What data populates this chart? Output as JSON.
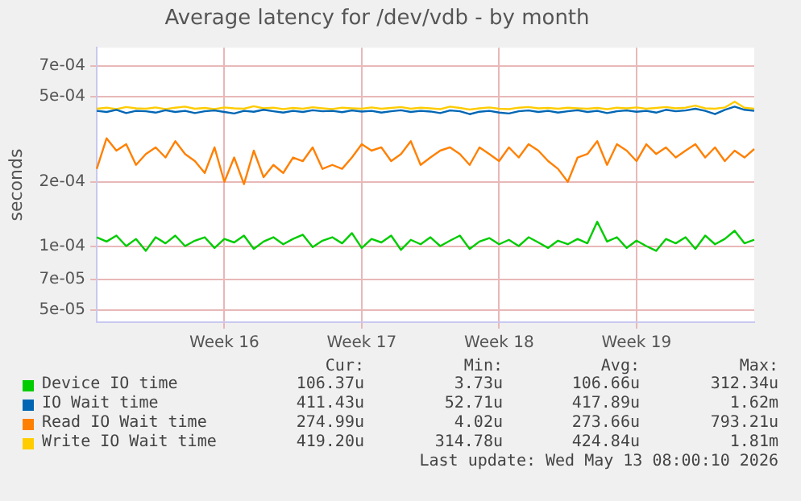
{
  "chart_data": {
    "type": "line",
    "title": "Average latency for /dev/vdb - by month",
    "ylabel": "seconds",
    "categories": [
      null,
      null,
      null,
      null,
      null,
      null,
      null,
      null,
      null,
      null,
      null,
      null,
      null,
      "Week 16",
      null,
      null,
      null,
      null,
      null,
      null,
      null,
      null,
      null,
      null,
      null,
      null,
      null,
      "Week 17",
      null,
      null,
      null,
      null,
      null,
      null,
      null,
      null,
      null,
      null,
      null,
      null,
      null,
      "Week 18",
      null,
      null,
      null,
      null,
      null,
      null,
      null,
      null,
      null,
      null,
      null,
      null,
      null,
      "Week 19",
      null,
      null,
      null,
      null,
      null,
      null,
      null,
      null,
      null,
      null,
      null,
      null
    ],
    "series": [
      {
        "name": "Device IO time",
        "color": "#00cc00",
        "values": [
          0.00011,
          0.000105,
          0.000112,
          0.0001,
          0.000108,
          9.5e-05,
          0.00011,
          0.000103,
          0.000112,
          0.0001,
          0.000106,
          0.00011,
          9.8e-05,
          0.000108,
          0.000104,
          0.000112,
          9.7e-05,
          0.000105,
          0.00011,
          0.000102,
          0.000108,
          0.000113,
          9.9e-05,
          0.000106,
          0.00011,
          0.000103,
          0.000115,
          9.8e-05,
          0.000108,
          0.000104,
          0.000112,
          9.6e-05,
          0.000107,
          0.000102,
          0.00011,
          0.0001,
          0.000106,
          0.000112,
          9.7e-05,
          0.000105,
          0.000109,
          0.000102,
          0.000107,
          0.0001,
          0.00011,
          0.000104,
          9.8e-05,
          0.000106,
          0.000102,
          0.000108,
          0.000103,
          0.00013,
          0.000105,
          0.00011,
          9.8e-05,
          0.000106,
          0.0001,
          9.5e-05,
          0.000108,
          0.000103,
          0.00011,
          9.7e-05,
          0.000112,
          0.000102,
          0.000108,
          0.000118,
          0.000103,
          0.000107
        ]
      },
      {
        "name": "IO Wait time",
        "color": "#0066b3",
        "values": [
          0.00043,
          0.000425,
          0.000435,
          0.00042,
          0.00043,
          0.000428,
          0.000422,
          0.000433,
          0.000425,
          0.00043,
          0.00042,
          0.000428,
          0.000432,
          0.000425,
          0.000418,
          0.00043,
          0.000426,
          0.000435,
          0.000428,
          0.000422,
          0.00043,
          0.000425,
          0.000433,
          0.000428,
          0.00043,
          0.000424,
          0.000432,
          0.000427,
          0.00043,
          0.000422,
          0.000428,
          0.000433,
          0.000425,
          0.00043,
          0.000427,
          0.00042,
          0.000432,
          0.000428,
          0.000415,
          0.000426,
          0.00043,
          0.000422,
          0.000418,
          0.000428,
          0.000432,
          0.000425,
          0.00043,
          0.000422,
          0.000428,
          0.000433,
          0.000425,
          0.00043,
          0.00042,
          0.000428,
          0.000432,
          0.000426,
          0.00043,
          0.000422,
          0.000435,
          0.000428,
          0.000432,
          0.00044,
          0.00043,
          0.000415,
          0.000435,
          0.00045,
          0.000435,
          0.00043
        ]
      },
      {
        "name": "Read IO Wait time",
        "color": "#ff8000",
        "values": [
          0.00023,
          0.00032,
          0.00028,
          0.0003,
          0.00024,
          0.00027,
          0.00029,
          0.00026,
          0.00031,
          0.00027,
          0.00025,
          0.00022,
          0.00029,
          0.0002,
          0.00026,
          0.000195,
          0.00028,
          0.00021,
          0.00024,
          0.00022,
          0.00026,
          0.00025,
          0.00029,
          0.00023,
          0.00024,
          0.00023,
          0.00026,
          0.0003,
          0.00028,
          0.00029,
          0.00025,
          0.00027,
          0.00031,
          0.00024,
          0.00026,
          0.00028,
          0.00029,
          0.00027,
          0.00024,
          0.00029,
          0.00027,
          0.00025,
          0.00029,
          0.00026,
          0.0003,
          0.00028,
          0.00025,
          0.00023,
          0.0002,
          0.00026,
          0.00027,
          0.00031,
          0.00024,
          0.0003,
          0.00028,
          0.00025,
          0.0003,
          0.00027,
          0.00029,
          0.00026,
          0.00028,
          0.0003,
          0.00026,
          0.00029,
          0.00025,
          0.00028,
          0.00026,
          0.000285
        ]
      },
      {
        "name": "Write IO Wait time",
        "color": "#ffcc00",
        "values": [
          0.00044,
          0.000445,
          0.000438,
          0.000448,
          0.000442,
          0.00044,
          0.000446,
          0.000438,
          0.000445,
          0.00045,
          0.00044,
          0.000444,
          0.000438,
          0.000446,
          0.000442,
          0.00044,
          0.000452,
          0.000442,
          0.000445,
          0.000438,
          0.000444,
          0.00044,
          0.000447,
          0.000442,
          0.000438,
          0.000445,
          0.000442,
          0.00044,
          0.000446,
          0.00044,
          0.000444,
          0.000448,
          0.00044,
          0.000445,
          0.000442,
          0.000438,
          0.00045,
          0.000444,
          0.000436,
          0.000442,
          0.000446,
          0.00044,
          0.000438,
          0.000445,
          0.000448,
          0.000442,
          0.000444,
          0.00044,
          0.000445,
          0.000442,
          0.00044,
          0.000444,
          0.000438,
          0.000445,
          0.000442,
          0.000446,
          0.00044,
          0.000444,
          0.000448,
          0.000442,
          0.000445,
          0.000455,
          0.000442,
          0.00044,
          0.000446,
          0.000475,
          0.000445,
          0.00044
        ]
      }
    ],
    "ylim": [
      4.4e-05,
      0.00085
    ],
    "yticks": [
      {
        "value": 5e-05,
        "label": "5e-05"
      },
      {
        "value": 7e-05,
        "label": "7e-05"
      },
      {
        "value": 0.0001,
        "label": "1e-04"
      },
      {
        "value": 0.0002,
        "label": "2e-04"
      },
      {
        "value": 0.0005,
        "label": "5e-04"
      },
      {
        "value": 0.0007,
        "label": "7e-04"
      }
    ],
    "log": "y",
    "grid": true,
    "legend": "bottom",
    "marker": "none",
    "line_style": "solid",
    "annotations": [
      "Cur:",
      "Min:",
      "Avg:",
      "Max:",
      "106.37u",
      "3.73u",
      "106.66u",
      "312.34u",
      "411.43u",
      "52.71u",
      "417.89u",
      "1.62m",
      "274.99u",
      "4.02u",
      "273.66u",
      "793.21u",
      "419.20u",
      "314.78u",
      "424.84u",
      "1.81m",
      "Last update: Wed May 13 08:00:10 2026"
    ]
  }
}
